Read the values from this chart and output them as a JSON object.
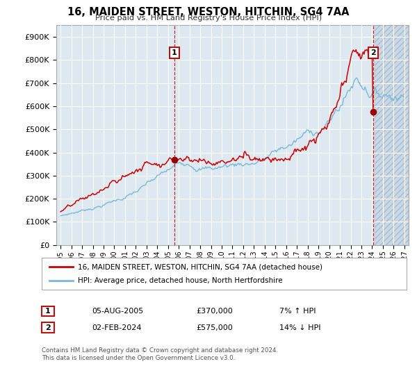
{
  "title": "16, MAIDEN STREET, WESTON, HITCHIN, SG4 7AA",
  "subtitle": "Price paid vs. HM Land Registry's House Price Index (HPI)",
  "legend_line1": "16, MAIDEN STREET, WESTON, HITCHIN, SG4 7AA (detached house)",
  "legend_line2": "HPI: Average price, detached house, North Hertfordshire",
  "annotation1_date": "05-AUG-2005",
  "annotation1_price": "£370,000",
  "annotation1_hpi": "7% ↑ HPI",
  "annotation2_date": "02-FEB-2024",
  "annotation2_price": "£575,000",
  "annotation2_hpi": "14% ↓ HPI",
  "footer1": "Contains HM Land Registry data © Crown copyright and database right 2024.",
  "footer2": "This data is licensed under the Open Government Licence v3.0.",
  "sale1_year": 2005.59,
  "sale1_price": 370000,
  "sale2_year": 2024.08,
  "sale2_price": 575000,
  "hpi_color": "#7bb8d8",
  "price_color": "#cc0000",
  "dot_color": "#990000",
  "vline_color": "#cc0000",
  "bg_color": "#dde8f0",
  "hatch_color": "#c8d8e4",
  "ylim_max": 950000,
  "ylim_min": 0,
  "xlim_min": 1994.6,
  "xlim_max": 2027.4,
  "future_cutoff": 2024.25,
  "ytick_values": [
    0,
    100000,
    200000,
    300000,
    400000,
    500000,
    600000,
    700000,
    800000,
    900000
  ],
  "ytick_labels": [
    "£0",
    "£100K",
    "£200K",
    "£300K",
    "£400K",
    "£500K",
    "£600K",
    "£700K",
    "£800K",
    "£900K"
  ],
  "xtick_years": [
    1995,
    1996,
    1997,
    1998,
    1999,
    2000,
    2001,
    2002,
    2003,
    2004,
    2005,
    2006,
    2007,
    2008,
    2009,
    2010,
    2011,
    2012,
    2013,
    2014,
    2015,
    2016,
    2017,
    2018,
    2019,
    2020,
    2021,
    2022,
    2023,
    2024,
    2025,
    2026,
    2027
  ]
}
